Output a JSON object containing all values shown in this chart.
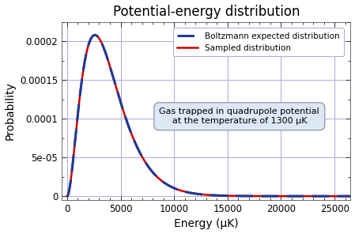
{
  "title": "Potential-energy distribution",
  "xlabel": "Energy (μK)",
  "ylabel": "Probability",
  "xlim": [
    -500,
    26500
  ],
  "ylim": [
    -5e-06,
    0.000225
  ],
  "temperature": 1300,
  "shape": 3.0,
  "yticks": [
    0,
    5e-05,
    0.0001,
    0.00015,
    0.0002
  ],
  "xticks": [
    0,
    5000,
    10000,
    15000,
    20000,
    25000
  ],
  "boltzmann_color": "#1F3A93",
  "sampled_color": "#CC0000",
  "grid_color": "#AAAADD",
  "background_color": "#FFFFFF",
  "legend_boltzmann": "Boltzmann expected distribution",
  "legend_sampled": "Sampled distribution",
  "annotation_text": "Gas trapped in quadrupole potential\nat the temperature of 1300 μK",
  "annotation_box_color": "#DCE8F5",
  "annotation_box_edge": "#888899",
  "title_fontsize": 12,
  "label_fontsize": 10,
  "tick_fontsize": 8.5,
  "legend_fontsize": 7.5
}
